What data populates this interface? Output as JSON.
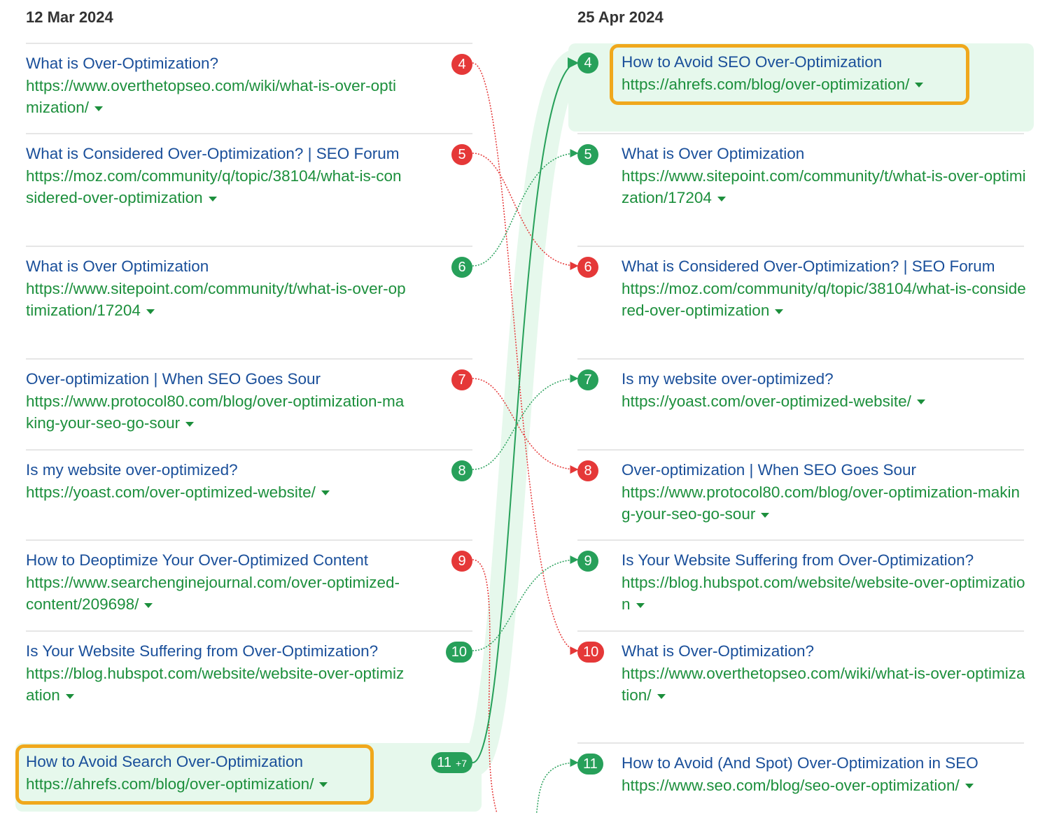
{
  "left": {
    "date": "12 Mar 2024",
    "rows": [
      {
        "rank": "4",
        "title": "What is Over-Optimization?",
        "url": "https://www.overthetopseo.com/wiki/what-is-over-optimization/",
        "move": "down"
      },
      {
        "rank": "5",
        "title": "What is Considered Over-Optimization? | SEO Forum",
        "url": "https://moz.com/community/q/topic/38104/what-is-considered-over-optimization",
        "move": "down"
      },
      {
        "rank": "6",
        "title": "What is Over Optimization",
        "url": "https://www.sitepoint.com/community/t/what-is-over-optimization/17204",
        "move": "up"
      },
      {
        "rank": "7",
        "title": "Over-optimization | When SEO Goes Sour",
        "url": "https://www.protocol80.com/blog/over-optimization-making-your-seo-go-sour",
        "move": "down"
      },
      {
        "rank": "8",
        "title": "Is my website over-optimized?",
        "url": "https://yoast.com/over-optimized-website/",
        "move": "up"
      },
      {
        "rank": "9",
        "title": "How to Deoptimize Your Over-Optimized Content",
        "url": "https://www.searchenginejournal.com/over-optimized-content/209698/",
        "move": "down"
      },
      {
        "rank": "10",
        "title": "Is Your Website Suffering from Over-Optimization?",
        "url": "https://blog.hubspot.com/website/website-over-optimization",
        "move": "up"
      },
      {
        "rank": "11",
        "change": "+7",
        "title": "How to Avoid Search Over-Optimization",
        "url": "https://ahrefs.com/blog/over-optimization/",
        "move": "up",
        "highlighted": true
      }
    ]
  },
  "right": {
    "date": "25 Apr 2024",
    "rows": [
      {
        "rank": "4",
        "title": "How to Avoid SEO Over-Optimization",
        "url": "https://ahrefs.com/blog/over-optimization/",
        "move": "up",
        "highlighted": true
      },
      {
        "rank": "5",
        "title": "What is Over Optimization",
        "url": "https://www.sitepoint.com/community/t/what-is-over-optimization/17204",
        "move": "up"
      },
      {
        "rank": "6",
        "title": "What is Considered Over-Optimization? | SEO Forum",
        "url": "https://moz.com/community/q/topic/38104/what-is-considered-over-optimization",
        "move": "down"
      },
      {
        "rank": "7",
        "title": "Is my website over-optimized?",
        "url": "https://yoast.com/over-optimized-website/",
        "move": "up"
      },
      {
        "rank": "8",
        "title": "Over-optimization | When SEO Goes Sour",
        "url": "https://www.protocol80.com/blog/over-optimization-making-your-seo-go-sour",
        "move": "down"
      },
      {
        "rank": "9",
        "title": "Is Your Website Suffering from Over-Optimization?",
        "url": "https://blog.hubspot.com/website/website-over-optimization",
        "move": "up"
      },
      {
        "rank": "10",
        "title": "What is Over-Optimization?",
        "url": "https://www.overthetopseo.com/wiki/what-is-over-optimization/",
        "move": "down"
      },
      {
        "rank": "11",
        "title": "How to Avoid (And Spot) Over-Optimization in SEO",
        "url": "https://www.seo.com/blog/seo-over-optimization/",
        "move": "up"
      }
    ]
  },
  "connections": [
    [
      4,
      10
    ],
    [
      5,
      6
    ],
    [
      6,
      5
    ],
    [
      7,
      8
    ],
    [
      8,
      7
    ],
    [
      9,
      null
    ],
    [
      10,
      9
    ],
    [
      11,
      4
    ],
    [
      null,
      11
    ]
  ],
  "colors": {
    "up": "#27a05a",
    "down": "#e53838",
    "highlight": "#e6f8ec",
    "outline": "#f0a81c"
  }
}
